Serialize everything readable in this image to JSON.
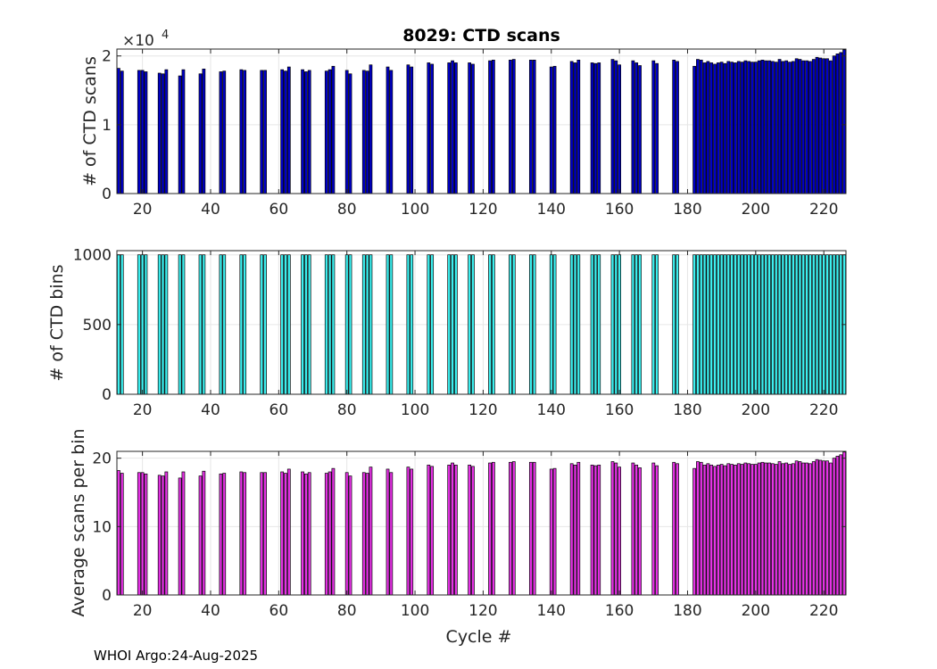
{
  "footer": "WHOI Argo:24-Aug-2025",
  "chart_data": [
    {
      "type": "bar",
      "title": "8029: CTD scans",
      "xlabel": "",
      "ylabel": "# of CTD scans",
      "xlim": [
        13,
        226
      ],
      "ylim": [
        0,
        21000
      ],
      "xticks": [
        20,
        40,
        60,
        80,
        100,
        120,
        140,
        160,
        180,
        200,
        220
      ],
      "yticks": [
        0,
        10000,
        20000
      ],
      "ytick_labels": [
        "0",
        "1",
        "2"
      ],
      "exponent_label": "×10",
      "exponent_power": "4",
      "grid": true,
      "color": "#0000c8",
      "x": [
        13,
        14,
        19,
        20,
        21,
        25,
        26,
        27,
        31,
        32,
        37,
        38,
        43,
        44,
        49,
        50,
        55,
        56,
        61,
        62,
        63,
        67,
        68,
        69,
        74,
        75,
        76,
        80,
        81,
        85,
        86,
        87,
        92,
        93,
        98,
        99,
        104,
        105,
        110,
        111,
        112,
        116,
        117,
        122,
        123,
        128,
        129,
        134,
        135,
        140,
        141,
        146,
        147,
        148,
        152,
        153,
        154,
        158,
        159,
        160,
        164,
        165,
        166,
        170,
        171,
        176,
        177,
        182,
        183,
        184,
        185,
        186,
        187,
        188,
        189,
        190,
        191,
        192,
        193,
        194,
        195,
        196,
        197,
        198,
        199,
        200,
        201,
        202,
        203,
        204,
        205,
        206,
        207,
        208,
        209,
        210,
        211,
        212,
        213,
        214,
        215,
        216,
        217,
        218,
        219,
        220,
        221,
        222,
        223,
        224,
        225,
        226
      ],
      "values": [
        18200,
        17800,
        17900,
        17900,
        17700,
        17500,
        17400,
        18000,
        17100,
        18000,
        17400,
        18100,
        17700,
        17800,
        18000,
        17900,
        17900,
        17900,
        18000,
        17800,
        18400,
        18000,
        17700,
        17900,
        17800,
        18000,
        18500,
        17900,
        17400,
        17900,
        17800,
        18700,
        18400,
        17900,
        18700,
        18400,
        19000,
        18800,
        19000,
        19300,
        19000,
        19000,
        18800,
        19300,
        19400,
        19400,
        19500,
        19400,
        19400,
        18400,
        18500,
        19200,
        19000,
        19400,
        19000,
        18900,
        19000,
        19500,
        19300,
        18700,
        19300,
        19000,
        18600,
        19300,
        18900,
        19400,
        19200,
        18500,
        19500,
        19400,
        19000,
        19200,
        19000,
        18800,
        19000,
        19100,
        18900,
        19200,
        19100,
        19000,
        19200,
        19100,
        19300,
        19200,
        19100,
        19100,
        19300,
        19400,
        19300,
        19300,
        19200,
        19100,
        19500,
        19200,
        19300,
        19100,
        19200,
        19600,
        19500,
        19300,
        19300,
        19200,
        19500,
        19800,
        19700,
        19600,
        19600,
        19300,
        20000,
        20300,
        20500,
        20900
      ]
    },
    {
      "type": "bar",
      "title": "",
      "xlabel": "",
      "ylabel": "# of CTD bins",
      "xlim": [
        13,
        226
      ],
      "ylim": [
        0,
        1030
      ],
      "xticks": [
        20,
        40,
        60,
        80,
        100,
        120,
        140,
        160,
        180,
        200,
        220
      ],
      "yticks": [
        0,
        500,
        1000
      ],
      "ytick_labels": [
        "0",
        "500",
        "1000"
      ],
      "grid": true,
      "color": "#3cf0f0",
      "x": [
        13,
        14,
        19,
        20,
        21,
        25,
        26,
        27,
        31,
        32,
        37,
        38,
        43,
        44,
        49,
        50,
        55,
        56,
        61,
        62,
        63,
        67,
        68,
        69,
        74,
        75,
        76,
        80,
        81,
        85,
        86,
        87,
        92,
        93,
        98,
        99,
        104,
        105,
        110,
        111,
        112,
        116,
        117,
        122,
        123,
        128,
        129,
        134,
        135,
        140,
        141,
        146,
        147,
        148,
        152,
        153,
        154,
        158,
        159,
        160,
        164,
        165,
        166,
        170,
        171,
        176,
        177,
        182,
        183,
        184,
        185,
        186,
        187,
        188,
        189,
        190,
        191,
        192,
        193,
        194,
        195,
        196,
        197,
        198,
        199,
        200,
        201,
        202,
        203,
        204,
        205,
        206,
        207,
        208,
        209,
        210,
        211,
        212,
        213,
        214,
        215,
        216,
        217,
        218,
        219,
        220,
        221,
        222,
        223,
        224,
        225,
        226
      ],
      "values": [
        1000,
        1000,
        1000,
        1000,
        1000,
        1000,
        1000,
        1000,
        1000,
        1000,
        1000,
        1000,
        1000,
        1000,
        1000,
        1000,
        1000,
        1000,
        1000,
        1000,
        1000,
        1000,
        1000,
        1000,
        1000,
        1000,
        1000,
        1000,
        1000,
        1000,
        1000,
        1000,
        1000,
        1000,
        1000,
        1000,
        1000,
        1000,
        1000,
        1000,
        1000,
        1000,
        1000,
        1000,
        1000,
        1000,
        1000,
        1000,
        1000,
        1000,
        1000,
        1000,
        1000,
        1000,
        1000,
        1000,
        1000,
        1000,
        1000,
        1000,
        1000,
        1000,
        1000,
        1000,
        1000,
        1000,
        1000,
        1000,
        1000,
        1000,
        1000,
        1000,
        1000,
        1000,
        1000,
        1000,
        1000,
        1000,
        1000,
        1000,
        1000,
        1000,
        1000,
        1000,
        1000,
        1000,
        1000,
        1000,
        1000,
        1000,
        1000,
        1000,
        1000,
        1000,
        1000,
        1000,
        1000,
        1000,
        1000,
        1000,
        1000,
        1000,
        1000,
        1000,
        1000,
        1000,
        1000,
        1000,
        1000,
        1000,
        1000,
        1000
      ]
    },
    {
      "type": "bar",
      "title": "",
      "xlabel": "Cycle #",
      "ylabel": "Average scans per bin",
      "xlim": [
        13,
        226
      ],
      "ylim": [
        0,
        21
      ],
      "xticks": [
        20,
        40,
        60,
        80,
        100,
        120,
        140,
        160,
        180,
        200,
        220
      ],
      "yticks": [
        0,
        10,
        20
      ],
      "ytick_labels": [
        "0",
        "10",
        "20"
      ],
      "grid": true,
      "color": "#e632e6",
      "x": [
        13,
        14,
        19,
        20,
        21,
        25,
        26,
        27,
        31,
        32,
        37,
        38,
        43,
        44,
        49,
        50,
        55,
        56,
        61,
        62,
        63,
        67,
        68,
        69,
        74,
        75,
        76,
        80,
        81,
        85,
        86,
        87,
        92,
        93,
        98,
        99,
        104,
        105,
        110,
        111,
        112,
        116,
        117,
        122,
        123,
        128,
        129,
        134,
        135,
        140,
        141,
        146,
        147,
        148,
        152,
        153,
        154,
        158,
        159,
        160,
        164,
        165,
        166,
        170,
        171,
        176,
        177,
        182,
        183,
        184,
        185,
        186,
        187,
        188,
        189,
        190,
        191,
        192,
        193,
        194,
        195,
        196,
        197,
        198,
        199,
        200,
        201,
        202,
        203,
        204,
        205,
        206,
        207,
        208,
        209,
        210,
        211,
        212,
        213,
        214,
        215,
        216,
        217,
        218,
        219,
        220,
        221,
        222,
        223,
        224,
        225,
        226
      ],
      "values": [
        18.2,
        17.8,
        17.9,
        17.9,
        17.7,
        17.5,
        17.4,
        18,
        17.1,
        18,
        17.4,
        18.1,
        17.7,
        17.8,
        18,
        17.9,
        17.9,
        17.9,
        18,
        17.8,
        18.4,
        18,
        17.7,
        17.9,
        17.8,
        18,
        18.5,
        17.9,
        17.4,
        17.9,
        17.8,
        18.7,
        18.4,
        17.9,
        18.7,
        18.4,
        19,
        18.8,
        19,
        19.3,
        19,
        19,
        18.8,
        19.3,
        19.4,
        19.4,
        19.5,
        19.4,
        19.4,
        18.4,
        18.5,
        19.2,
        19,
        19.4,
        19,
        18.9,
        19,
        19.5,
        19.3,
        18.7,
        19.3,
        19,
        18.6,
        19.3,
        18.9,
        19.4,
        19.2,
        18.5,
        19.5,
        19.4,
        19,
        19.2,
        19,
        18.8,
        19,
        19.1,
        18.9,
        19.2,
        19.1,
        19,
        19.2,
        19.1,
        19.3,
        19.2,
        19.1,
        19.1,
        19.3,
        19.4,
        19.3,
        19.3,
        19.2,
        19.1,
        19.5,
        19.2,
        19.3,
        19.1,
        19.2,
        19.6,
        19.5,
        19.3,
        19.3,
        19.2,
        19.5,
        19.8,
        19.7,
        19.6,
        19.6,
        19.3,
        20,
        20.3,
        20.5,
        20.9
      ]
    }
  ]
}
